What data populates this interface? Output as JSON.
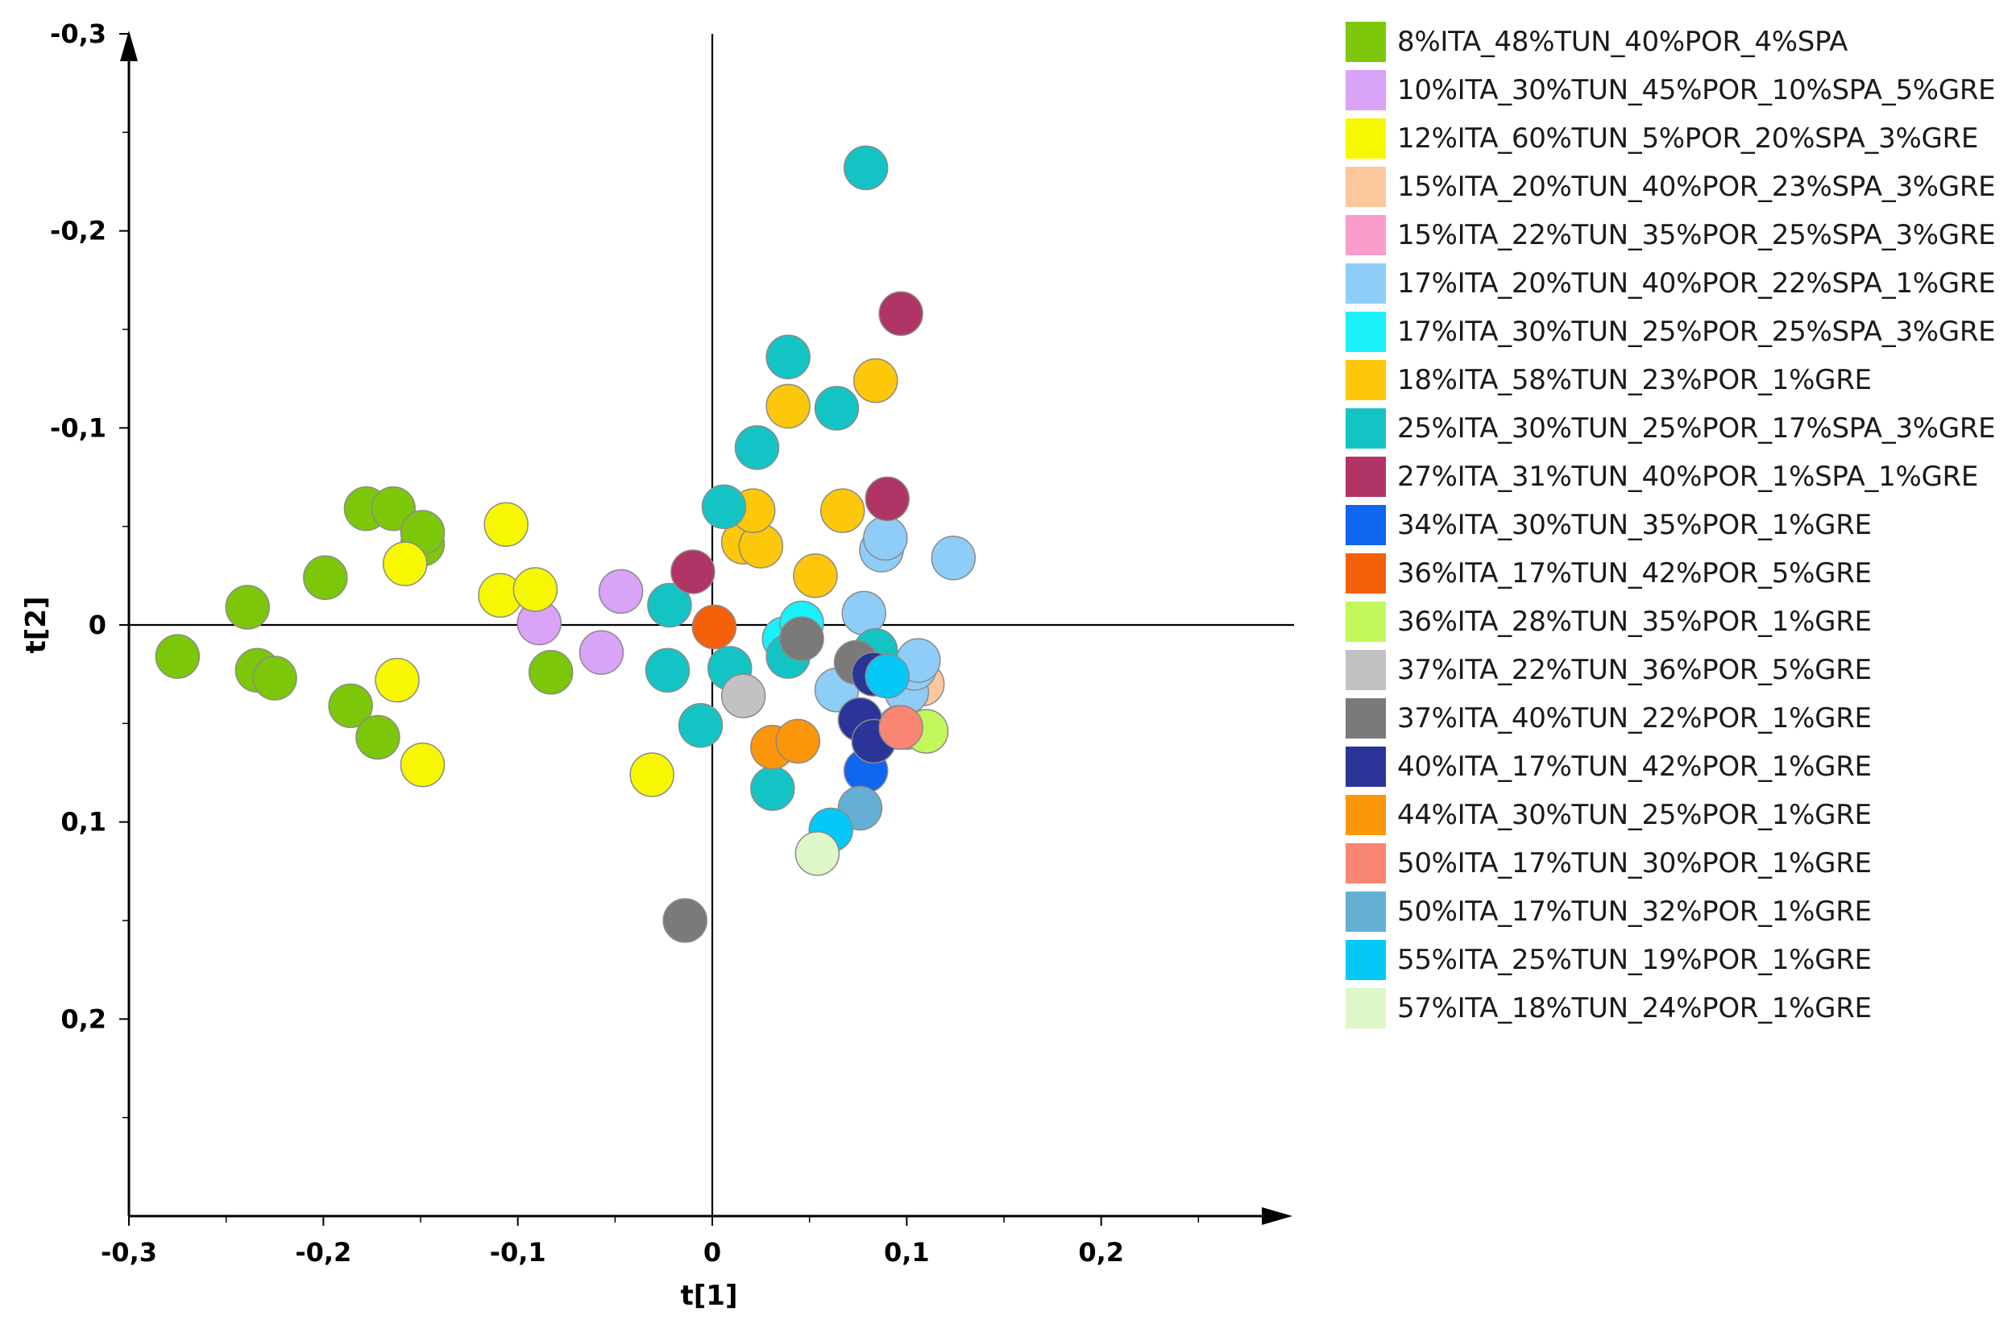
{
  "chart_data": {
    "type": "scatter",
    "title": "",
    "xlabel": "t[1]",
    "ylabel": "t[2]",
    "xlim": [
      -0.3,
      0.3
    ],
    "ylim": [
      -0.3,
      0.3
    ],
    "x_ticks": [
      -0.3,
      -0.2,
      -0.1,
      0,
      0.1,
      0.2
    ],
    "y_ticks": [
      -0.3,
      -0.2,
      -0.1,
      0,
      0.1,
      0.2
    ],
    "x_tick_labels": [
      "-0,3",
      "-0,2",
      "-0,1",
      "0",
      "0,1",
      "0,2"
    ],
    "y_tick_labels": [
      "-0,3",
      "-0,2",
      "-0,1",
      "0",
      "0,1",
      "0,2"
    ],
    "legend_position": "right",
    "series": [
      {
        "name": "8%ITA_48%TUN_40%POR_4%SPA",
        "color": "#7cc70a",
        "points": [
          [
            -0.275,
            0.016
          ],
          [
            -0.234,
            0.023
          ],
          [
            -0.225,
            0.027
          ],
          [
            -0.239,
            -0.009
          ],
          [
            -0.186,
            0.041
          ],
          [
            -0.172,
            0.057
          ],
          [
            -0.199,
            -0.024
          ],
          [
            -0.178,
            -0.059
          ],
          [
            -0.164,
            -0.059
          ],
          [
            -0.149,
            -0.041
          ],
          [
            -0.149,
            -0.047
          ],
          [
            -0.083,
            0.024
          ]
        ]
      },
      {
        "name": "10%ITA_30%TUN_45%POR_10%SPA_5%GRE",
        "color": "#d9a3f7",
        "points": [
          [
            -0.089,
            -0.001
          ],
          [
            -0.057,
            0.014
          ],
          [
            -0.047,
            -0.017
          ]
        ]
      },
      {
        "name": "12%ITA_60%TUN_5%POR_20%SPA_3%GRE",
        "color": "#f7f700",
        "points": [
          [
            -0.149,
            0.071
          ],
          [
            -0.162,
            0.028
          ],
          [
            -0.158,
            -0.031
          ],
          [
            -0.109,
            -0.015
          ],
          [
            -0.091,
            -0.018
          ],
          [
            -0.106,
            -0.051
          ],
          [
            -0.031,
            0.076
          ]
        ]
      },
      {
        "name": "15%ITA_20%TUN_40%POR_23%SPA_3%GRE",
        "color": "#fbc79c",
        "points": [
          [
            0.108,
            0.03
          ]
        ]
      },
      {
        "name": "15%ITA_22%TUN_35%POR_25%SPA_3%GRE",
        "color": "#f99ccc",
        "points": [
          [
            0.1,
            0.052
          ]
        ]
      },
      {
        "name": "17%ITA_20%TUN_40%POR_22%SPA_1%GRE",
        "color": "#8ecdf7",
        "points": [
          [
            0.064,
            0.033
          ],
          [
            0.078,
            -0.006
          ],
          [
            0.087,
            -0.038
          ],
          [
            0.089,
            -0.044
          ],
          [
            0.124,
            -0.034
          ],
          [
            0.1,
            0.034
          ],
          [
            0.104,
            0.022
          ],
          [
            0.106,
            0.018
          ],
          [
            0.096,
            0.052
          ]
        ]
      },
      {
        "name": "17%ITA_30%TUN_25%POR_25%SPA_3%GRE",
        "color": "#1af0f7",
        "points": [
          [
            0.037,
            0.007
          ],
          [
            0.046,
            -0.001
          ]
        ]
      },
      {
        "name": "18%ITA_58%TUN_23%POR_1%GRE",
        "color": "#fdc70a",
        "points": [
          [
            0.016,
            -0.042
          ],
          [
            0.025,
            -0.04
          ],
          [
            0.021,
            -0.058
          ],
          [
            0.053,
            -0.025
          ],
          [
            0.067,
            -0.058
          ],
          [
            0.039,
            -0.111
          ],
          [
            0.084,
            -0.124
          ]
        ]
      },
      {
        "name": "25%ITA_30%TUN_25%POR_17%SPA_3%GRE",
        "color": "#14c4c4",
        "points": [
          [
            0.031,
            0.083
          ],
          [
            -0.006,
            0.051
          ],
          [
            -0.023,
            0.023
          ],
          [
            0.009,
            0.022
          ],
          [
            0.039,
            0.016
          ],
          [
            -0.022,
            -0.01
          ],
          [
            0.006,
            -0.06
          ],
          [
            0.023,
            -0.09
          ],
          [
            0.064,
            -0.11
          ],
          [
            0.039,
            -0.136
          ],
          [
            0.079,
            -0.232
          ],
          [
            0.084,
            0.013
          ]
        ]
      },
      {
        "name": "27%ITA_31%TUN_40%POR_1%SPA_1%GRE",
        "color": "#b03566",
        "points": [
          [
            -0.01,
            -0.027
          ],
          [
            0.09,
            -0.064
          ],
          [
            0.097,
            -0.158
          ]
        ]
      },
      {
        "name": "34%ITA_30%TUN_35%POR_1%GRE",
        "color": "#0f66f0",
        "points": [
          [
            0.079,
            0.074
          ]
        ]
      },
      {
        "name": "36%ITA_17%TUN_42%POR_5%GRE",
        "color": "#f5600a",
        "points": [
          [
            0.001,
            0.001
          ]
        ]
      },
      {
        "name": "36%ITA_28%TUN_35%POR_1%GRE",
        "color": "#c2f75c",
        "points": [
          [
            0.11,
            0.054
          ]
        ]
      },
      {
        "name": "37%ITA_22%TUN_36%POR_5%GRE",
        "color": "#c2c2c2",
        "points": [
          [
            0.016,
            0.036
          ]
        ]
      },
      {
        "name": "37%ITA_40%TUN_22%POR_1%GRE",
        "color": "#7a7a7a",
        "points": [
          [
            -0.014,
            0.15
          ],
          [
            0.046,
            0.007
          ],
          [
            0.074,
            0.019
          ]
        ]
      },
      {
        "name": "40%ITA_17%TUN_42%POR_1%GRE",
        "color": "#2b3597",
        "points": [
          [
            0.076,
            0.048
          ],
          [
            0.083,
            0.059
          ],
          [
            0.083,
            0.025
          ]
        ]
      },
      {
        "name": "44%ITA_30%TUN_25%POR_1%GRE",
        "color": "#fb960a",
        "points": [
          [
            0.031,
            0.062
          ],
          [
            0.044,
            0.059
          ]
        ]
      },
      {
        "name": "50%ITA_17%TUN_30%POR_1%GRE",
        "color": "#fa8573",
        "points": [
          [
            0.097,
            0.052
          ]
        ]
      },
      {
        "name": "50%ITA_17%TUN_32%POR_1%GRE",
        "color": "#66afd4",
        "points": [
          [
            0.076,
            0.093
          ]
        ]
      },
      {
        "name": "55%ITA_25%TUN_19%POR_1%GRE",
        "color": "#05c8f7",
        "points": [
          [
            0.061,
            0.104
          ],
          [
            0.09,
            0.026
          ]
        ]
      },
      {
        "name": "57%ITA_18%TUN_24%POR_1%GRE",
        "color": "#ddf7c6",
        "points": [
          [
            0.054,
            0.116
          ]
        ]
      }
    ]
  }
}
